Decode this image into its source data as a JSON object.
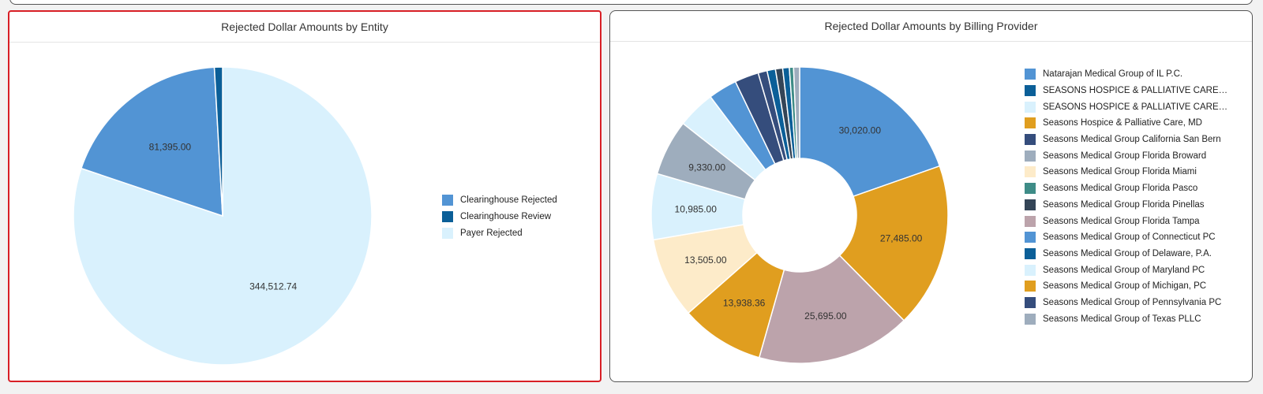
{
  "chart_data": [
    {
      "type": "pie",
      "title": "Rejected Dollar Amounts by Entity",
      "series": [
        {
          "name": "Clearinghouse Rejected",
          "value": 81395.0,
          "label": "81,395.00",
          "color": "#5294d4"
        },
        {
          "name": "Clearinghouse Review",
          "value": 3800,
          "label": "",
          "color": "#0b5f98"
        },
        {
          "name": "Payer Rejected",
          "value": 344512.74,
          "label": "344,512.74",
          "color": "#d9f1fd"
        }
      ],
      "legend": "right"
    },
    {
      "type": "donut",
      "title": "Rejected Dollar Amounts by Billing Provider",
      "series": [
        {
          "name": "Natarajan Medical Group of IL P.C.",
          "value": 30020.0,
          "label": "30,020.00",
          "color": "#5294d4"
        },
        {
          "name": "Seasons Hospice & Palliative Care, MD",
          "value": 27485.0,
          "label": "27,485.00",
          "color": "#e09e1f"
        },
        {
          "name": "Seasons Medical Group Florida Tampa",
          "value": 25695.0,
          "label": "25,695.00",
          "color": "#bca3ab"
        },
        {
          "name": "Seasons Medical Group of Michigan, PC",
          "value": 13938.36,
          "label": "13,938.36",
          "color": "#e09e1f"
        },
        {
          "name": "Seasons Medical Group Florida Miami",
          "value": 13505.0,
          "label": "13,505.00",
          "color": "#fdebc9"
        },
        {
          "name": "Seasons Medical Group of Maryland PC",
          "value": 10985.0,
          "label": "10,985.00",
          "color": "#d9f1fd"
        },
        {
          "name": "Seasons Medical Group Florida Broward",
          "value": 9330.0,
          "label": "9,330.00",
          "color": "#9eadbd"
        },
        {
          "name": "SEASONS HOSPICE & PALLIATIVE CARE O... (2)",
          "value": 6300,
          "label": "",
          "color": "#d9f1fd"
        },
        {
          "name": "Seasons Medical Group of Connecticut PC",
          "value": 4800,
          "label": "",
          "color": "#5294d4"
        },
        {
          "name": "Seasons Medical Group California San Bern",
          "value": 4000,
          "label": "",
          "color": "#354d7c"
        },
        {
          "name": "Seasons Medical Group of Pennsylvania PC",
          "value": 1500,
          "label": "",
          "color": "#354d7c"
        },
        {
          "name": "Seasons Medical Group of Delaware, P.A.",
          "value": 1400,
          "label": "",
          "color": "#0b5f98"
        },
        {
          "name": "Seasons Medical Group Florida Pinellas",
          "value": 1200,
          "label": "",
          "color": "#344557"
        },
        {
          "name": "SEASONS HOSPICE & PALLIATIVE CARE O...",
          "value": 1100,
          "label": "",
          "color": "#0b5f98"
        },
        {
          "name": "Seasons Medical Group Florida Pasco",
          "value": 700,
          "label": "",
          "color": "#3e8c87"
        },
        {
          "name": "Seasons Medical Group of Texas PLLC",
          "value": 1000,
          "label": "",
          "color": "#9eadbd"
        }
      ],
      "legend": "right"
    }
  ],
  "legend_left": [
    {
      "label": "Clearinghouse Rejected",
      "color": "#5294d4"
    },
    {
      "label": "Clearinghouse Review",
      "color": "#0b5f98"
    },
    {
      "label": "Payer Rejected",
      "color": "#d9f1fd"
    }
  ],
  "legend_right": [
    {
      "label": "Natarajan Medical Group of IL P.C.",
      "color": "#5294d4"
    },
    {
      "label": "SEASONS HOSPICE & PALLIATIVE CARE O...",
      "color": "#0b5f98"
    },
    {
      "label": "SEASONS HOSPICE & PALLIATIVE CARE O...",
      "color": "#d9f1fd"
    },
    {
      "label": "Seasons Hospice & Palliative Care, MD",
      "color": "#e09e1f"
    },
    {
      "label": "Seasons Medical Group California San Bern",
      "color": "#354d7c"
    },
    {
      "label": "Seasons Medical Group Florida Broward",
      "color": "#9eadbd"
    },
    {
      "label": "Seasons Medical Group Florida Miami",
      "color": "#fdebc9"
    },
    {
      "label": "Seasons Medical Group Florida Pasco",
      "color": "#3e8c87"
    },
    {
      "label": "Seasons Medical Group Florida Pinellas",
      "color": "#344557"
    },
    {
      "label": "Seasons Medical Group Florida Tampa",
      "color": "#bca3ab"
    },
    {
      "label": "Seasons Medical Group of Connecticut PC",
      "color": "#5294d4"
    },
    {
      "label": "Seasons Medical Group of Delaware, P.A.",
      "color": "#0b5f98"
    },
    {
      "label": "Seasons Medical Group of Maryland PC",
      "color": "#d9f1fd"
    },
    {
      "label": "Seasons Medical Group of Michigan, PC",
      "color": "#e09e1f"
    },
    {
      "label": "Seasons Medical Group of Pennsylvania PC",
      "color": "#354d7c"
    },
    {
      "label": "Seasons Medical Group of Texas PLLC",
      "color": "#9eadbd"
    }
  ]
}
